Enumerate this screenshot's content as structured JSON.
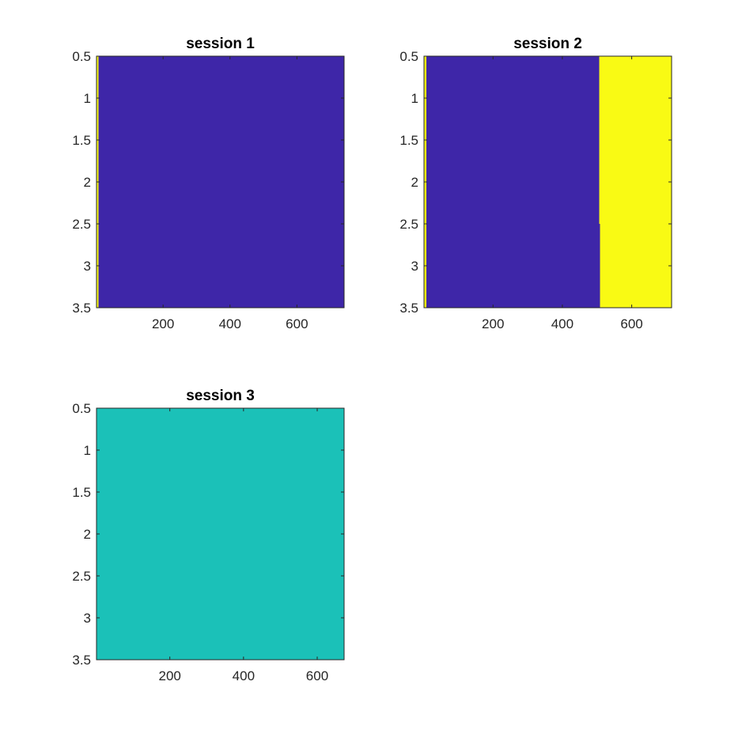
{
  "chart_data": [
    {
      "type": "heatmap",
      "title": "session 1",
      "xlim": [
        1,
        741
      ],
      "ylim": [
        0.5,
        3.5
      ],
      "y_reversed": true,
      "x_ticks": [
        200,
        400,
        600
      ],
      "x_tick_labels": [
        "200",
        "400",
        "600"
      ],
      "y_ticks": [
        0.5,
        1,
        1.5,
        2,
        2.5,
        3,
        3.5
      ],
      "y_tick_labels": [
        "0.5",
        "1",
        "1.5",
        "2",
        "2.5",
        "3",
        "3.5"
      ],
      "regions": [
        {
          "x0": 1,
          "x1": 7,
          "y0": 0.5,
          "y1": 3.5,
          "color": "#f9fa14"
        },
        {
          "x0": 7,
          "x1": 741,
          "y0": 0.5,
          "y1": 3.5,
          "color": "#3e26a8"
        }
      ]
    },
    {
      "type": "heatmap",
      "title": "session 2",
      "xlim": [
        1,
        715
      ],
      "ylim": [
        0.5,
        3.5
      ],
      "y_reversed": true,
      "x_ticks": [
        200,
        400,
        600
      ],
      "x_tick_labels": [
        "200",
        "400",
        "600"
      ],
      "y_ticks": [
        0.5,
        1,
        1.5,
        2,
        2.5,
        3,
        3.5
      ],
      "y_tick_labels": [
        "0.5",
        "1",
        "1.5",
        "2",
        "2.5",
        "3",
        "3.5"
      ],
      "regions": [
        {
          "x0": 1,
          "x1": 8,
          "y0": 0.5,
          "y1": 3.5,
          "color": "#f9fa14"
        },
        {
          "x0": 8,
          "x1": 506,
          "y0": 0.5,
          "y1": 2.5,
          "color": "#3e26a8"
        },
        {
          "x0": 8,
          "x1": 509,
          "y0": 2.5,
          "y1": 3.5,
          "color": "#3e26a8"
        },
        {
          "x0": 506,
          "x1": 715,
          "y0": 0.5,
          "y1": 2.5,
          "color": "#f9fa14"
        },
        {
          "x0": 509,
          "x1": 715,
          "y0": 2.5,
          "y1": 3.5,
          "color": "#f9fa14"
        }
      ]
    },
    {
      "type": "heatmap",
      "title": "session 3",
      "xlim": [
        1,
        673
      ],
      "ylim": [
        0.5,
        3.5
      ],
      "y_reversed": true,
      "x_ticks": [
        200,
        400,
        600
      ],
      "x_tick_labels": [
        "200",
        "400",
        "600"
      ],
      "y_ticks": [
        0.5,
        1,
        1.5,
        2,
        2.5,
        3,
        3.5
      ],
      "y_tick_labels": [
        "0.5",
        "1",
        "1.5",
        "2",
        "2.5",
        "3",
        "3.5"
      ],
      "regions": [
        {
          "x0": 1,
          "x1": 673,
          "y0": 0.5,
          "y1": 3.5,
          "color": "#1bc1b8"
        }
      ]
    }
  ]
}
